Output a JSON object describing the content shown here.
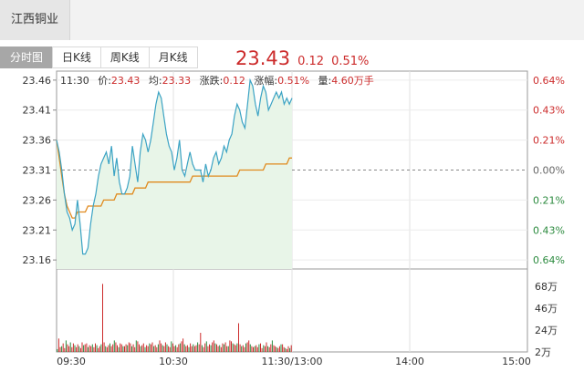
{
  "stock": {
    "name": "江西铜业"
  },
  "tabs": [
    "分时图",
    "日K线",
    "周K线",
    "月K线"
  ],
  "quote": {
    "price": "23.43",
    "change": "0.12",
    "change_pct": "0.51%"
  },
  "info": {
    "time": "11:30",
    "price_label": "价:",
    "price": "23.43",
    "avg_label": "均:",
    "avg": "23.33",
    "change_label": "涨跌:",
    "change": "0.12",
    "pct_label": "涨幅:",
    "pct": "0.51%",
    "vol_label": "量:",
    "vol": "4.60万手"
  },
  "colors": {
    "up": "#cc2b2b",
    "down": "#2b8a3e",
    "price_line": "#3ba3c4",
    "avg_line": "#e08a1e",
    "fill": "#e8f5e8"
  },
  "chart_data": {
    "type": "line",
    "prev_close": 23.31,
    "price_ticks": [
      "23.46",
      "23.41",
      "23.36",
      "23.31",
      "23.26",
      "23.21",
      "23.16"
    ],
    "pct_ticks": [
      "0.64%",
      "0.43%",
      "0.21%",
      "0.00%",
      "0.21%",
      "0.43%",
      "0.64%"
    ],
    "x_ticks": [
      "09:30",
      "10:30",
      "11:30/13:00",
      "14:00",
      "15:00"
    ],
    "volume_ticks": [
      "68万",
      "46万",
      "24万",
      "2万"
    ],
    "series": [
      {
        "values": [
          23.36,
          23.34,
          23.31,
          23.27,
          23.24,
          23.23,
          23.21,
          23.22,
          23.26,
          23.22,
          23.17,
          23.17,
          23.18,
          23.22,
          23.25,
          23.27,
          23.3,
          23.32,
          23.33,
          23.34,
          23.32,
          23.35,
          23.3,
          23.33,
          23.29,
          23.27,
          23.27,
          23.28,
          23.3,
          23.35,
          23.32,
          23.29,
          23.34,
          23.37,
          23.36,
          23.34,
          23.36,
          23.39,
          23.42,
          23.44,
          23.43,
          23.4,
          23.37,
          23.35,
          23.34,
          23.31,
          23.33,
          23.36,
          23.31,
          23.3,
          23.32,
          23.34,
          23.32,
          23.31,
          23.31,
          23.31,
          23.29,
          23.32,
          23.3,
          23.31,
          23.33,
          23.34,
          23.32,
          23.33,
          23.35,
          23.34,
          23.36,
          23.37,
          23.4,
          23.42,
          23.41,
          23.39,
          23.38,
          23.42,
          23.46,
          23.45,
          23.42,
          23.4,
          23.43,
          23.45,
          23.44,
          23.41,
          23.42,
          23.43,
          23.44,
          23.43,
          23.44,
          23.42,
          23.43,
          23.42,
          23.43
        ]
      },
      {
        "values": [
          23.36,
          23.33,
          23.3,
          23.27,
          23.25,
          23.24,
          23.23,
          23.23,
          23.24,
          23.24,
          23.24,
          23.24,
          23.25,
          23.25,
          23.25,
          23.25,
          23.25,
          23.25,
          23.26,
          23.26,
          23.26,
          23.26,
          23.26,
          23.27,
          23.27,
          23.27,
          23.27,
          23.27,
          23.27,
          23.27,
          23.28,
          23.28,
          23.28,
          23.28,
          23.28,
          23.29,
          23.29,
          23.29,
          23.29,
          23.29,
          23.29,
          23.29,
          23.29,
          23.29,
          23.29,
          23.29,
          23.29,
          23.29,
          23.29,
          23.29,
          23.29,
          23.29,
          23.3,
          23.3,
          23.3,
          23.3,
          23.3,
          23.3,
          23.3,
          23.3,
          23.3,
          23.3,
          23.3,
          23.3,
          23.3,
          23.3,
          23.3,
          23.3,
          23.3,
          23.3,
          23.31,
          23.31,
          23.31,
          23.31,
          23.31,
          23.31,
          23.31,
          23.31,
          23.31,
          23.31,
          23.32,
          23.32,
          23.32,
          23.32,
          23.32,
          23.32,
          23.32,
          23.32,
          23.32,
          23.33,
          23.33
        ]
      }
    ],
    "volume": [
      3,
      14,
      5,
      6,
      9,
      4,
      12,
      8,
      6,
      10,
      5,
      9,
      7,
      5,
      8,
      6,
      4,
      10,
      7,
      8,
      9,
      5,
      7,
      6,
      8,
      5,
      9,
      7,
      4,
      6,
      8,
      71,
      10,
      6,
      5,
      7,
      9,
      6,
      8,
      12,
      10,
      7,
      5,
      9,
      8,
      6,
      6,
      8,
      7,
      10,
      9,
      6,
      8,
      5,
      12,
      11,
      8,
      6,
      7,
      9,
      5,
      7,
      6,
      9,
      8,
      10,
      6,
      7,
      5,
      8,
      12,
      9,
      7,
      6,
      10,
      8,
      6,
      5,
      11,
      9,
      6,
      7,
      5,
      8,
      9,
      11,
      14,
      8,
      6,
      7,
      5,
      9,
      6,
      8,
      6,
      7,
      10,
      8,
      20,
      7,
      5,
      9,
      11,
      6,
      8,
      7,
      10,
      12,
      9,
      8,
      6,
      7,
      5,
      9,
      8,
      10,
      6,
      6,
      12,
      11,
      9,
      8,
      7,
      9,
      30,
      8,
      6,
      7,
      5,
      9,
      10,
      12,
      8,
      6,
      5,
      6,
      7,
      5,
      8,
      9,
      4,
      7,
      6,
      10,
      6,
      5,
      8,
      12,
      7,
      6,
      5,
      4,
      6,
      8,
      8,
      5,
      4,
      3,
      6,
      4,
      7
    ]
  }
}
